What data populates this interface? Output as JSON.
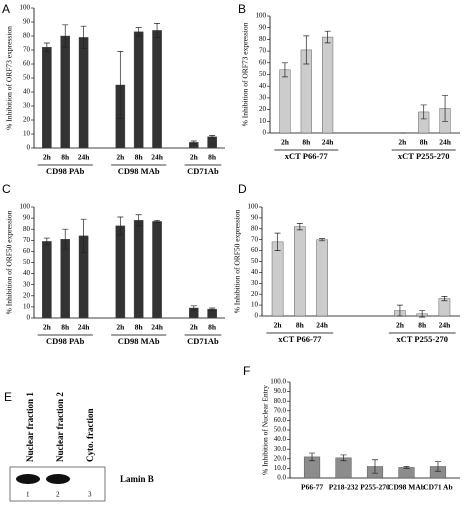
{
  "chart_data": [
    {
      "type": "bar",
      "panel": "A",
      "y_label": "% Inhibition of ORF73 expression",
      "color": "#333333",
      "ylim": [
        0,
        100
      ],
      "yticks": [
        0,
        10,
        20,
        30,
        40,
        50,
        60,
        70,
        80,
        90,
        100
      ],
      "groups": [
        {
          "label": "CD98 PAb",
          "categories": [
            "2h",
            "8h",
            "24h"
          ],
          "values": [
            72,
            80,
            79
          ],
          "errors": [
            3,
            8,
            8
          ]
        },
        {
          "label": "CD98 MAb",
          "categories": [
            "2h",
            "8h",
            "24h"
          ],
          "values": [
            45,
            83,
            84
          ],
          "errors": [
            24,
            3,
            5
          ]
        },
        {
          "label": "CD71Ab",
          "categories": [
            "2h",
            "8h"
          ],
          "values": [
            4,
            8
          ],
          "errors": [
            1,
            1
          ]
        }
      ]
    },
    {
      "type": "bar",
      "panel": "B",
      "y_label": "% Inhibition of ORF73 expression",
      "color": "#cccccc",
      "ylim": [
        0,
        100
      ],
      "yticks": [
        0,
        10,
        20,
        30,
        40,
        50,
        60,
        70,
        80,
        90,
        100
      ],
      "groups": [
        {
          "label": "xCT P66-77",
          "categories": [
            "2h",
            "8h",
            "24h"
          ],
          "values": [
            54,
            71,
            82
          ],
          "errors": [
            6,
            12,
            5
          ]
        },
        {
          "label": "xCT P255-270",
          "categories": [
            "2h",
            "8h",
            "24h"
          ],
          "values": [
            0,
            18,
            21
          ],
          "errors": [
            0,
            6,
            11
          ]
        }
      ]
    },
    {
      "type": "bar",
      "panel": "C",
      "y_label": "% Inhibition of ORF50 expression",
      "color": "#333333",
      "ylim": [
        0,
        100
      ],
      "yticks": [
        0,
        10,
        20,
        30,
        40,
        50,
        60,
        70,
        80,
        90,
        100
      ],
      "groups": [
        {
          "label": "CD98 PAb",
          "categories": [
            "2h",
            "8h",
            "24h"
          ],
          "values": [
            69,
            71,
            74
          ],
          "errors": [
            3,
            9,
            15
          ]
        },
        {
          "label": "CD98 MAb",
          "categories": [
            "2h",
            "8h",
            "24h"
          ],
          "values": [
            83,
            88,
            87
          ],
          "errors": [
            8,
            5,
            1
          ]
        },
        {
          "label": "CD71Ab",
          "categories": [
            "2h",
            "8h"
          ],
          "values": [
            9,
            8
          ],
          "errors": [
            2,
            1
          ]
        }
      ]
    },
    {
      "type": "bar",
      "panel": "D",
      "y_label": "% Inhibition of ORF50 expression",
      "color": "#cccccc",
      "ylim": [
        0,
        100
      ],
      "yticks": [
        0,
        10,
        20,
        30,
        40,
        50,
        60,
        70,
        80,
        90,
        100
      ],
      "groups": [
        {
          "label": "xCT P66-77",
          "categories": [
            "2h",
            "8h",
            "24h"
          ],
          "values": [
            68,
            82,
            70
          ],
          "errors": [
            8,
            3,
            1
          ]
        },
        {
          "label": "xCT P255-270",
          "categories": [
            "2h",
            "8h",
            "24h"
          ],
          "values": [
            5,
            2,
            16
          ],
          "errors": [
            5,
            3,
            2
          ]
        }
      ]
    },
    {
      "type": "bar",
      "panel": "F",
      "y_label": "% Inhibition of Nuclear Entry",
      "color": "#8c8c8c",
      "ylim": [
        0,
        100
      ],
      "yticks": [
        {
          "value": 0,
          "label": "0.0"
        },
        {
          "value": 10,
          "label": "10.0"
        },
        {
          "value": 20,
          "label": "20.0"
        },
        {
          "value": 30,
          "label": "30.0"
        },
        {
          "value": 40,
          "label": "40.0"
        },
        {
          "value": 50,
          "label": "50.0"
        },
        {
          "value": 60,
          "label": "60.0"
        },
        {
          "value": 70,
          "label": "70.0"
        },
        {
          "value": 80,
          "label": "80.0"
        },
        {
          "value": 90,
          "label": "90.0"
        },
        {
          "value": 100,
          "label": "100.0"
        }
      ],
      "categories": [
        "P66-77",
        "P218-232",
        "P255-270",
        "CD98 MAb",
        "CD71 Ab"
      ],
      "values": [
        22,
        21,
        12,
        11,
        12
      ],
      "errors": [
        4,
        3,
        7,
        1,
        5
      ]
    }
  ],
  "blot": {
    "panel": "E",
    "lanes": [
      "Nuclear fraction 1",
      "Nuclear fraction 2",
      "Cyto. fraction"
    ],
    "lane_numbers": [
      "1",
      "2",
      "3"
    ],
    "band": "Lamin B"
  }
}
